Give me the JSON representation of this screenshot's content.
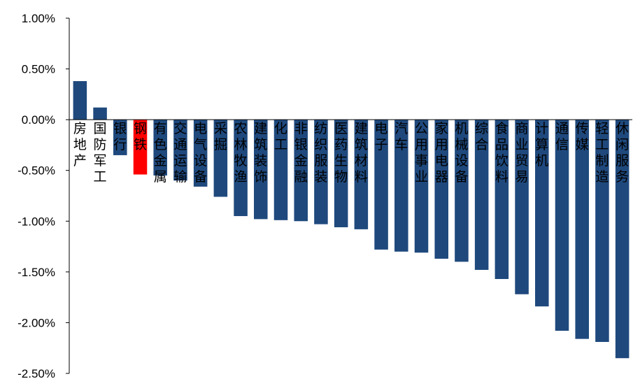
{
  "chart_data": {
    "type": "bar",
    "title": "",
    "xlabel": "",
    "ylabel": "",
    "ylim": [
      -2.5,
      1.0
    ],
    "yticks": [
      1.0,
      0.5,
      0.0,
      -0.5,
      -1.0,
      -1.5,
      -2.0,
      -2.5
    ],
    "ytick_labels": [
      "1.00%",
      "0.50%",
      "0.00%",
      "-0.50%",
      "-1.00%",
      "-1.50%",
      "-2.00%",
      "-2.50%"
    ],
    "grid": false,
    "legend": "none",
    "colors": {
      "default": "#1F497D",
      "highlight": "#FF0000"
    },
    "highlight_category": "钢铁",
    "categories": [
      "房地产",
      "国防军工",
      "银行",
      "钢铁",
      "有色金属",
      "交通运输",
      "电气设备",
      "采掘",
      "农林牧渔",
      "建筑装饰",
      "化工",
      "非银金融",
      "纺织服装",
      "医药生物",
      "建筑材料",
      "电子",
      "汽车",
      "公用事业",
      "家用电器",
      "机械设备",
      "综合",
      "食品饮料",
      "商业贸易",
      "计算机",
      "通信",
      "传媒",
      "轻工制造",
      "休闲服务"
    ],
    "values": [
      0.38,
      0.12,
      -0.35,
      -0.54,
      -0.55,
      -0.6,
      -0.66,
      -0.76,
      -0.95,
      -0.98,
      -0.99,
      -1.0,
      -1.03,
      -1.06,
      -1.08,
      -1.28,
      -1.3,
      -1.31,
      -1.37,
      -1.4,
      -1.48,
      -1.57,
      -1.72,
      -1.84,
      -2.08,
      -2.16,
      -2.19,
      -2.35
    ]
  }
}
